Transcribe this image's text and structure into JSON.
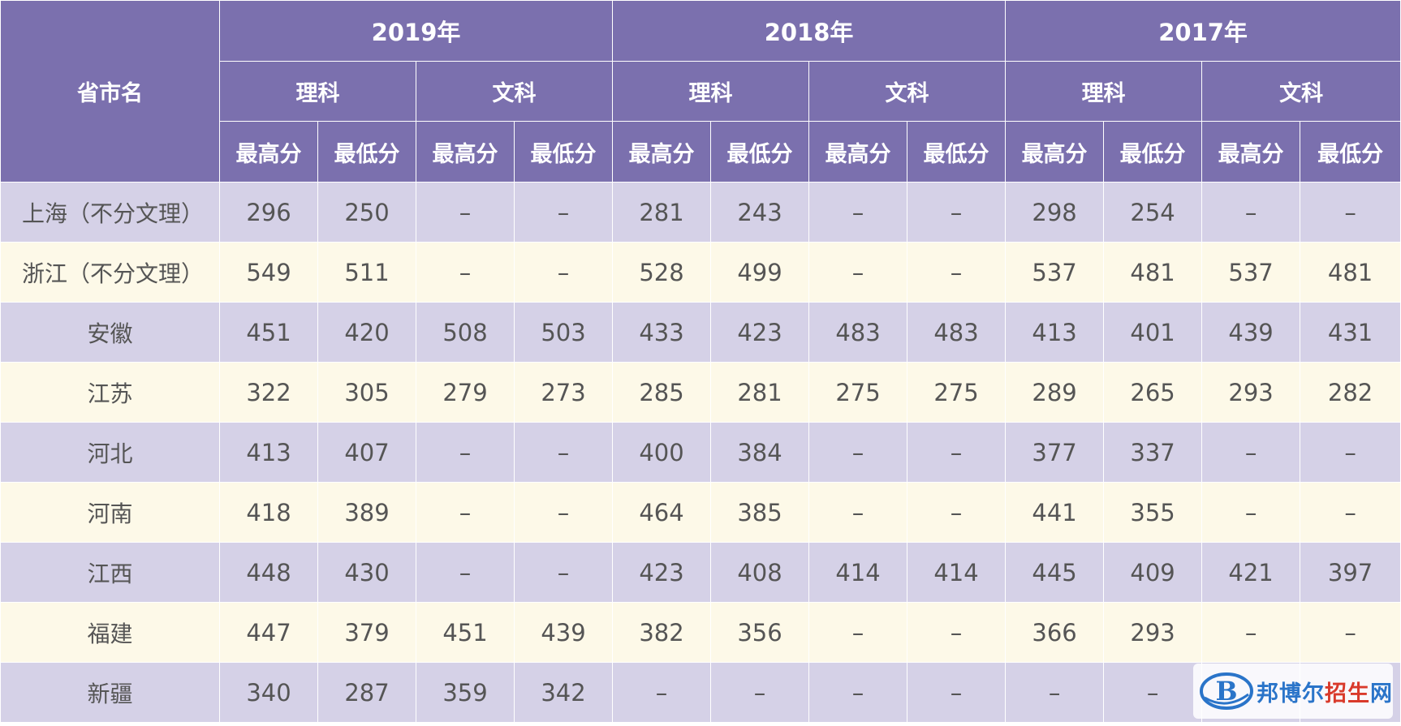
{
  "table": {
    "province_header": "省市名",
    "years": [
      "2019年",
      "2018年",
      "2017年"
    ],
    "subjects": [
      "理科",
      "文科"
    ],
    "score_labels": [
      "最高分",
      "最低分"
    ],
    "rows": [
      {
        "province": "上海（不分文理）",
        "values": [
          "296",
          "250",
          "–",
          "–",
          "281",
          "243",
          "–",
          "–",
          "298",
          "254",
          "–",
          "–"
        ]
      },
      {
        "province": "浙江（不分文理）",
        "values": [
          "549",
          "511",
          "–",
          "–",
          "528",
          "499",
          "–",
          "–",
          "537",
          "481",
          "537",
          "481"
        ]
      },
      {
        "province": "安徽",
        "values": [
          "451",
          "420",
          "508",
          "503",
          "433",
          "423",
          "483",
          "483",
          "413",
          "401",
          "439",
          "431"
        ]
      },
      {
        "province": "江苏",
        "values": [
          "322",
          "305",
          "279",
          "273",
          "285",
          "281",
          "275",
          "275",
          "289",
          "265",
          "293",
          "282"
        ]
      },
      {
        "province": "河北",
        "values": [
          "413",
          "407",
          "–",
          "–",
          "400",
          "384",
          "–",
          "–",
          "377",
          "337",
          "–",
          "–"
        ]
      },
      {
        "province": "河南",
        "values": [
          "418",
          "389",
          "–",
          "–",
          "464",
          "385",
          "–",
          "–",
          "441",
          "355",
          "–",
          "–"
        ]
      },
      {
        "province": "江西",
        "values": [
          "448",
          "430",
          "–",
          "–",
          "423",
          "408",
          "414",
          "414",
          "445",
          "409",
          "421",
          "397"
        ]
      },
      {
        "province": "福建",
        "values": [
          "447",
          "379",
          "451",
          "439",
          "382",
          "356",
          "–",
          "–",
          "366",
          "293",
          "–",
          "–"
        ]
      },
      {
        "province": "新疆",
        "values": [
          "340",
          "287",
          "359",
          "342",
          "–",
          "–",
          "–",
          "–",
          "–",
          "–",
          "",
          ""
        ]
      }
    ]
  },
  "watermark": {
    "logo_letter": "B",
    "text_blue": "邦博尔",
    "text_red": "招生",
    "text_blue_end": "网",
    "colors": {
      "blue": "#2a74c9",
      "red": "#d93a2b"
    }
  },
  "colors": {
    "header_bg": "#7b70ae",
    "row_odd_bg": "#d5d1e7",
    "row_even_bg": "#fdf9e8",
    "text": "#555555"
  }
}
